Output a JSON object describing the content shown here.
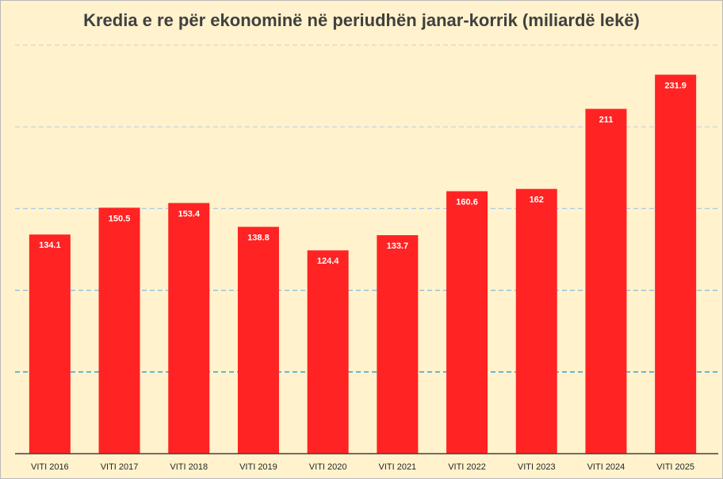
{
  "chart_data": {
    "type": "bar",
    "title": "Kredia e re për ekonominë në periudhën janar-korrik (miliardë lekë)",
    "categories": [
      "VITI 2016",
      "VITI 2017",
      "VITI 2018",
      "VITI 2019",
      "VITI 2020",
      "VITI 2021",
      "VITI 2022",
      "VITI 2023",
      "VITI 2024",
      "VITI 2025"
    ],
    "values": [
      134.1,
      150.5,
      153.4,
      138.8,
      124.4,
      133.7,
      160.6,
      162,
      211,
      231.9
    ],
    "value_labels": [
      "134.1",
      "150.5",
      "153.4",
      "138.8",
      "124.4",
      "133.7",
      "160.6",
      "162",
      "211",
      "231.9"
    ],
    "ylim": [
      0,
      250
    ],
    "gridline_values": [
      50,
      100,
      150,
      200,
      250
    ],
    "grid": true,
    "legend": "none",
    "colors": {
      "bar": "#ff2323",
      "background": "#fff2cc",
      "axis": "#404040",
      "grid_strong": "#2fa3e0",
      "grid_faint": "#e3cfc4"
    }
  }
}
